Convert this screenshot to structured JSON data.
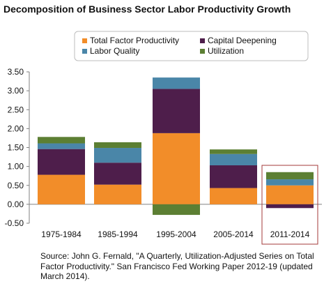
{
  "title": "Decomposition of Business Sector Labor Productivity Growth",
  "source_note": "Source: John G. Fernald, \"A Quarterly, Utilization-Adjusted Series on Total Factor Productivity.\" San Francisco Fed Working Paper 2012-19 (updated March 2014).",
  "colors": {
    "tfp": "#f28d29",
    "capital": "#4e1e4b",
    "labor": "#4a86a8",
    "utilization": "#5c7f33",
    "highlight_box": "#a33a3a"
  },
  "chart_data": {
    "type": "bar",
    "stacked": true,
    "categories": [
      "1975-1984",
      "1985-1994",
      "1995-2004",
      "2005-2014",
      "2011-2014"
    ],
    "series": [
      {
        "name": "Total Factor Productivity",
        "color": "#f28d29",
        "values": [
          0.78,
          0.52,
          1.88,
          0.43,
          0.5
        ]
      },
      {
        "name": "Capital Deepening",
        "color": "#4e1e4b",
        "values": [
          0.68,
          0.58,
          1.17,
          0.6,
          -0.1
        ]
      },
      {
        "name": "Labor Quality",
        "color": "#4a86a8",
        "values": [
          0.15,
          0.39,
          0.3,
          0.3,
          0.16
        ]
      },
      {
        "name": "Utilization",
        "color": "#5c7f33",
        "values": [
          0.17,
          0.15,
          -0.28,
          0.12,
          0.19
        ]
      }
    ],
    "yticks": [
      "-0.50",
      "0.00",
      "0.50",
      "1.00",
      "1.50",
      "2.00",
      "2.50",
      "3.00",
      "3.50"
    ],
    "ylim": [
      -0.5,
      3.5
    ],
    "highlighted_category": "2011-2014",
    "grid": false,
    "legend_position": "top"
  }
}
